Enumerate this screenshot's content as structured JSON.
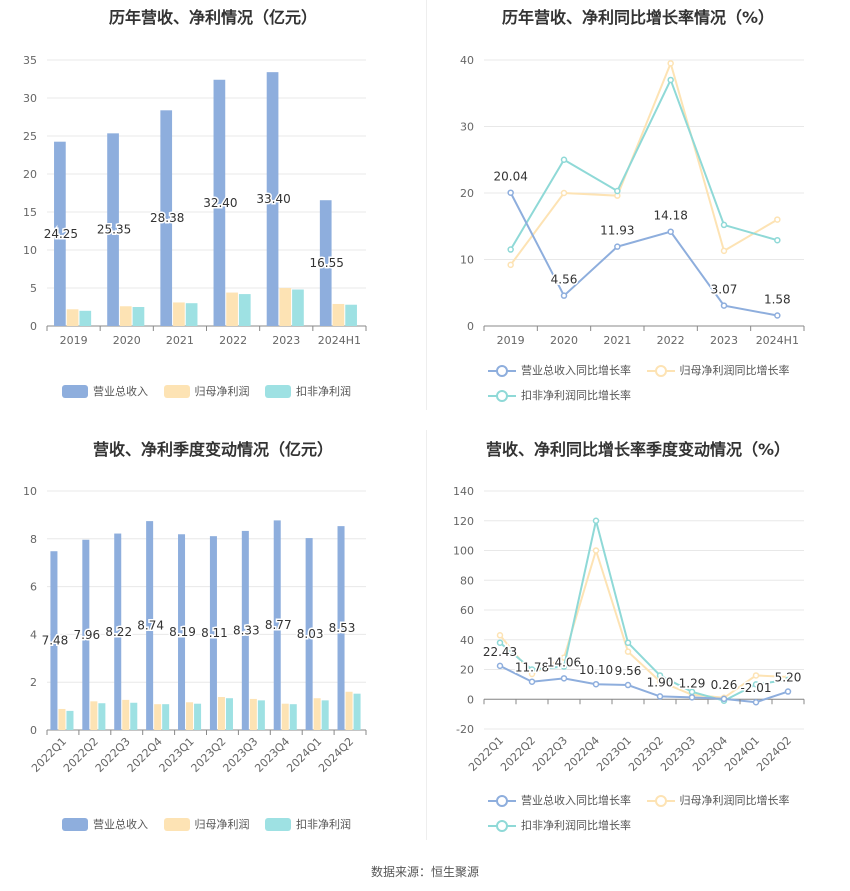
{
  "footer": "数据来源：恒生聚源",
  "colors": {
    "revenue": "#8eaedd",
    "net_profit": "#fde3b4",
    "deducted": "#9ee1e3",
    "line_revenue": "#8eaedd",
    "line_net": "#fde3b4",
    "line_deducted": "#8fd9d7"
  },
  "chart_data": [
    {
      "id": "annual_bar",
      "type": "bar",
      "title": "历年营收、净利情况（亿元）",
      "categories": [
        "2019",
        "2020",
        "2021",
        "2022",
        "2023",
        "2024H1"
      ],
      "yticks": [
        "0",
        "5",
        "10",
        "15",
        "20",
        "25",
        "30",
        "35"
      ],
      "ylim": [
        0,
        35
      ],
      "series": [
        {
          "name": "营业总收入",
          "values": [
            24.25,
            25.35,
            28.38,
            32.4,
            33.4,
            16.55
          ],
          "labels": [
            "24.25",
            "25.35",
            "28.38",
            "32.40",
            "33.40",
            "16.55"
          ]
        },
        {
          "name": "归母净利润",
          "values": [
            2.2,
            2.6,
            3.1,
            4.4,
            5.0,
            2.9
          ]
        },
        {
          "name": "扣非净利润",
          "values": [
            2.0,
            2.5,
            3.0,
            4.2,
            4.8,
            2.8
          ]
        }
      ],
      "legend": "bottom"
    },
    {
      "id": "annual_line",
      "type": "line",
      "title": "历年营收、净利同比增长率情况（%）",
      "categories": [
        "2019",
        "2020",
        "2021",
        "2022",
        "2023",
        "2024H1"
      ],
      "yticks": [
        "0",
        "10",
        "20",
        "30",
        "40"
      ],
      "ylim": [
        0,
        40
      ],
      "series": [
        {
          "name": "营业总收入同比增长率",
          "values": [
            20.04,
            4.56,
            11.93,
            14.18,
            3.07,
            1.58
          ],
          "labels": [
            "20.04",
            "4.56",
            "11.93",
            "14.18",
            "3.07",
            "1.58"
          ]
        },
        {
          "name": "归母净利润同比增长率",
          "values": [
            9.2,
            20.0,
            19.6,
            39.5,
            11.3,
            16.0
          ]
        },
        {
          "name": "扣非净利润同比增长率",
          "values": [
            11.5,
            25.0,
            20.3,
            37.0,
            15.2,
            12.9
          ]
        }
      ],
      "legend": "bottom"
    },
    {
      "id": "quarter_bar",
      "type": "bar",
      "title": "营收、净利季度变动情况（亿元）",
      "categories": [
        "2022Q1",
        "2022Q2",
        "2022Q3",
        "2022Q4",
        "2023Q1",
        "2023Q2",
        "2023Q3",
        "2023Q4",
        "2024Q1",
        "2024Q2"
      ],
      "yticks": [
        "0",
        "2",
        "4",
        "6",
        "8",
        "10"
      ],
      "ylim": [
        0,
        10
      ],
      "series": [
        {
          "name": "营业总收入",
          "values": [
            7.48,
            7.96,
            8.22,
            8.74,
            8.19,
            8.11,
            8.33,
            8.77,
            8.03,
            8.53
          ],
          "labels": [
            "7.48",
            "7.96",
            "8.22",
            "8.74",
            "8.19",
            "8.11",
            "8.33",
            "8.77",
            "8.03",
            "8.53"
          ]
        },
        {
          "name": "归母净利润",
          "values": [
            0.88,
            1.2,
            1.26,
            1.08,
            1.16,
            1.38,
            1.3,
            1.1,
            1.33,
            1.6
          ]
        },
        {
          "name": "扣非净利润",
          "values": [
            0.8,
            1.12,
            1.14,
            1.08,
            1.1,
            1.33,
            1.24,
            1.08,
            1.24,
            1.52
          ]
        }
      ],
      "legend": "bottom"
    },
    {
      "id": "quarter_line",
      "type": "line",
      "title": "营收、净利同比增长率季度变动情况（%）",
      "categories": [
        "2022Q1",
        "2022Q2",
        "2022Q3",
        "2022Q4",
        "2023Q1",
        "2023Q2",
        "2023Q3",
        "2023Q4",
        "2024Q1",
        "2024Q2"
      ],
      "yticks": [
        "-20",
        "0",
        "20",
        "40",
        "60",
        "80",
        "100",
        "120",
        "140"
      ],
      "ylim": [
        -20,
        140
      ],
      "series": [
        {
          "name": "营业总收入同比增长率",
          "values": [
            22.43,
            11.78,
            14.06,
            10.1,
            9.56,
            1.9,
            1.29,
            0.26,
            -2.01,
            5.2
          ],
          "labels": [
            "22.43",
            "11.78",
            "14.06",
            "10.10",
            "9.56",
            "1.90",
            "1.29",
            "0.26",
            "-2.01",
            "5.20"
          ]
        },
        {
          "name": "归母净利润同比增长率",
          "values": [
            43,
            17,
            28,
            100,
            32,
            12,
            3,
            1,
            16,
            15
          ]
        },
        {
          "name": "扣非净利润同比增长率",
          "values": [
            38,
            20,
            22,
            120,
            38,
            16,
            5,
            -1,
            10,
            13
          ]
        }
      ],
      "legend": "bottom"
    }
  ]
}
